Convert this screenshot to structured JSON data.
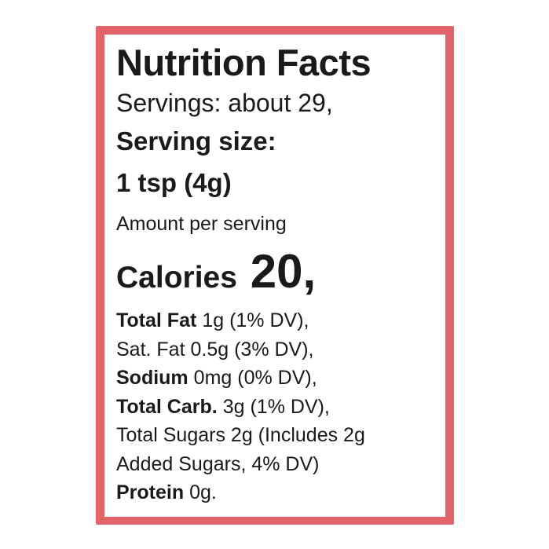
{
  "title": "Nutrition Facts",
  "servings": "Servings: about 29,",
  "serving_size_label": "Serving size:",
  "serving_size": "1 tsp (4g)",
  "amount_per_serving": "Amount per serving",
  "calories": {
    "label": "Calories",
    "value": "20,"
  },
  "nutrients": [
    {
      "bold": "Total Fat",
      "text": "1g (1% DV),"
    },
    {
      "text": "Sat. Fat 0.5g (3% DV),"
    },
    {
      "bold": "Sodium",
      "text": "0mg (0% DV),"
    },
    {
      "bold": "Total Carb.",
      "text": "3g (1% DV),"
    },
    {
      "text": "Total Sugars 2g (Includes 2g"
    },
    {
      "text": "Added Sugars, 4% DV)"
    },
    {
      "bold": "Protein",
      "text": "0g."
    }
  ]
}
